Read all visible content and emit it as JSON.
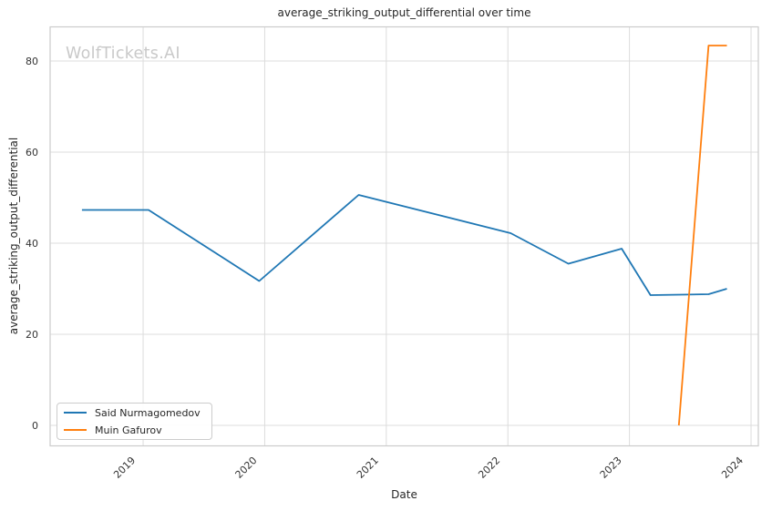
{
  "watermark": {
    "text": "WolfTickets.AI"
  },
  "chart_data": {
    "type": "line",
    "title": "average_striking_output_differential over time",
    "xlabel": "Date",
    "ylabel": "average_striking_output_differential",
    "grid": true,
    "legend_position": "lower left",
    "xlim": [
      2018.235,
      2024.06
    ],
    "ylim": [
      -4.5,
      87.5
    ],
    "x_ticks": [
      "2019",
      "2020",
      "2021",
      "2022",
      "2023",
      "2024"
    ],
    "x_tick_values": [
      2019,
      2020,
      2021,
      2022,
      2023,
      2024
    ],
    "y_ticks": [
      "0",
      "20",
      "40",
      "60",
      "80"
    ],
    "y_tick_values": [
      0,
      20,
      40,
      60,
      80
    ],
    "series": [
      {
        "name": "Said Nurmagomedov",
        "color": "#1f77b4",
        "x": [
          2018.497,
          2019.045,
          2019.955,
          2020.773,
          2022.023,
          2022.498,
          2022.936,
          2023.173,
          2023.651,
          2023.801
        ],
        "y": [
          47.3,
          47.3,
          31.7,
          50.6,
          42.2,
          35.5,
          38.8,
          28.6,
          28.8,
          30.0
        ]
      },
      {
        "name": "Muin Gafurov",
        "color": "#ff7f0e",
        "x": [
          2023.406,
          2023.651,
          2023.801
        ],
        "y": [
          0.0,
          83.4,
          83.4
        ]
      }
    ]
  }
}
